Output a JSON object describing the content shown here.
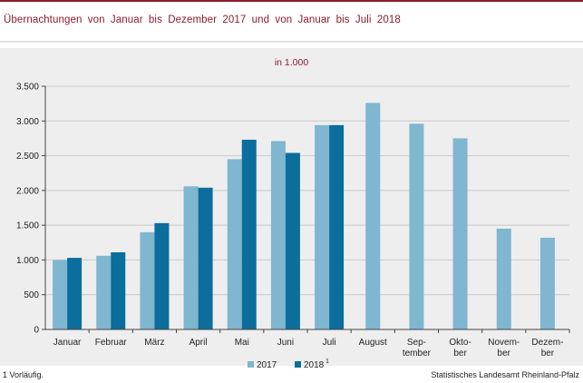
{
  "title": "Übernachtungen von Januar bis Dezember 2017 und von Januar bis Juli 2018",
  "footnote": "1 Vorläufig.",
  "source": "Statistisches Landesamt Rheinland-Pfalz",
  "colors": {
    "series_2017": "#7fb6d0",
    "series_2018": "#0b6e9c",
    "accent": "#8b1c2c"
  },
  "chart_data": {
    "type": "bar",
    "title": "",
    "unit_label": "in 1.000",
    "xlabel": "",
    "ylabel": "",
    "ylim": [
      0,
      3500
    ],
    "yticks": [
      0,
      500,
      1000,
      1500,
      2000,
      2500,
      3000,
      3500
    ],
    "ytick_labels": [
      "0",
      "500",
      "1.000",
      "1.500",
      "2.000",
      "2.500",
      "3.000",
      "3.500"
    ],
    "grid": true,
    "legend_position": "bottom-center",
    "categories": [
      "Januar",
      "Februar",
      "März",
      "April",
      "Mai",
      "Juni",
      "Juli",
      "August",
      "Sep-tember",
      "Okto-ber",
      "Novem-ber",
      "Dezem-ber"
    ],
    "category_label_lines": [
      [
        "Januar"
      ],
      [
        "Februar"
      ],
      [
        "März"
      ],
      [
        "April"
      ],
      [
        "Mai"
      ],
      [
        "Juni"
      ],
      [
        "Juli"
      ],
      [
        "August"
      ],
      [
        "Sep-",
        "tember"
      ],
      [
        "Okto-",
        "ber"
      ],
      [
        "Novem-",
        "ber"
      ],
      [
        "Dezem-",
        "ber"
      ]
    ],
    "series": [
      {
        "name": "2017",
        "color": "#7fb6d0",
        "values": [
          1000,
          1060,
          1400,
          2060,
          2450,
          2710,
          2940,
          3260,
          2960,
          2750,
          1450,
          1320
        ]
      },
      {
        "name": "2018",
        "superscript": "1",
        "color": "#0b6e9c",
        "values": [
          1030,
          1110,
          1530,
          2040,
          2730,
          2540,
          2940,
          null,
          null,
          null,
          null,
          null
        ]
      }
    ]
  }
}
